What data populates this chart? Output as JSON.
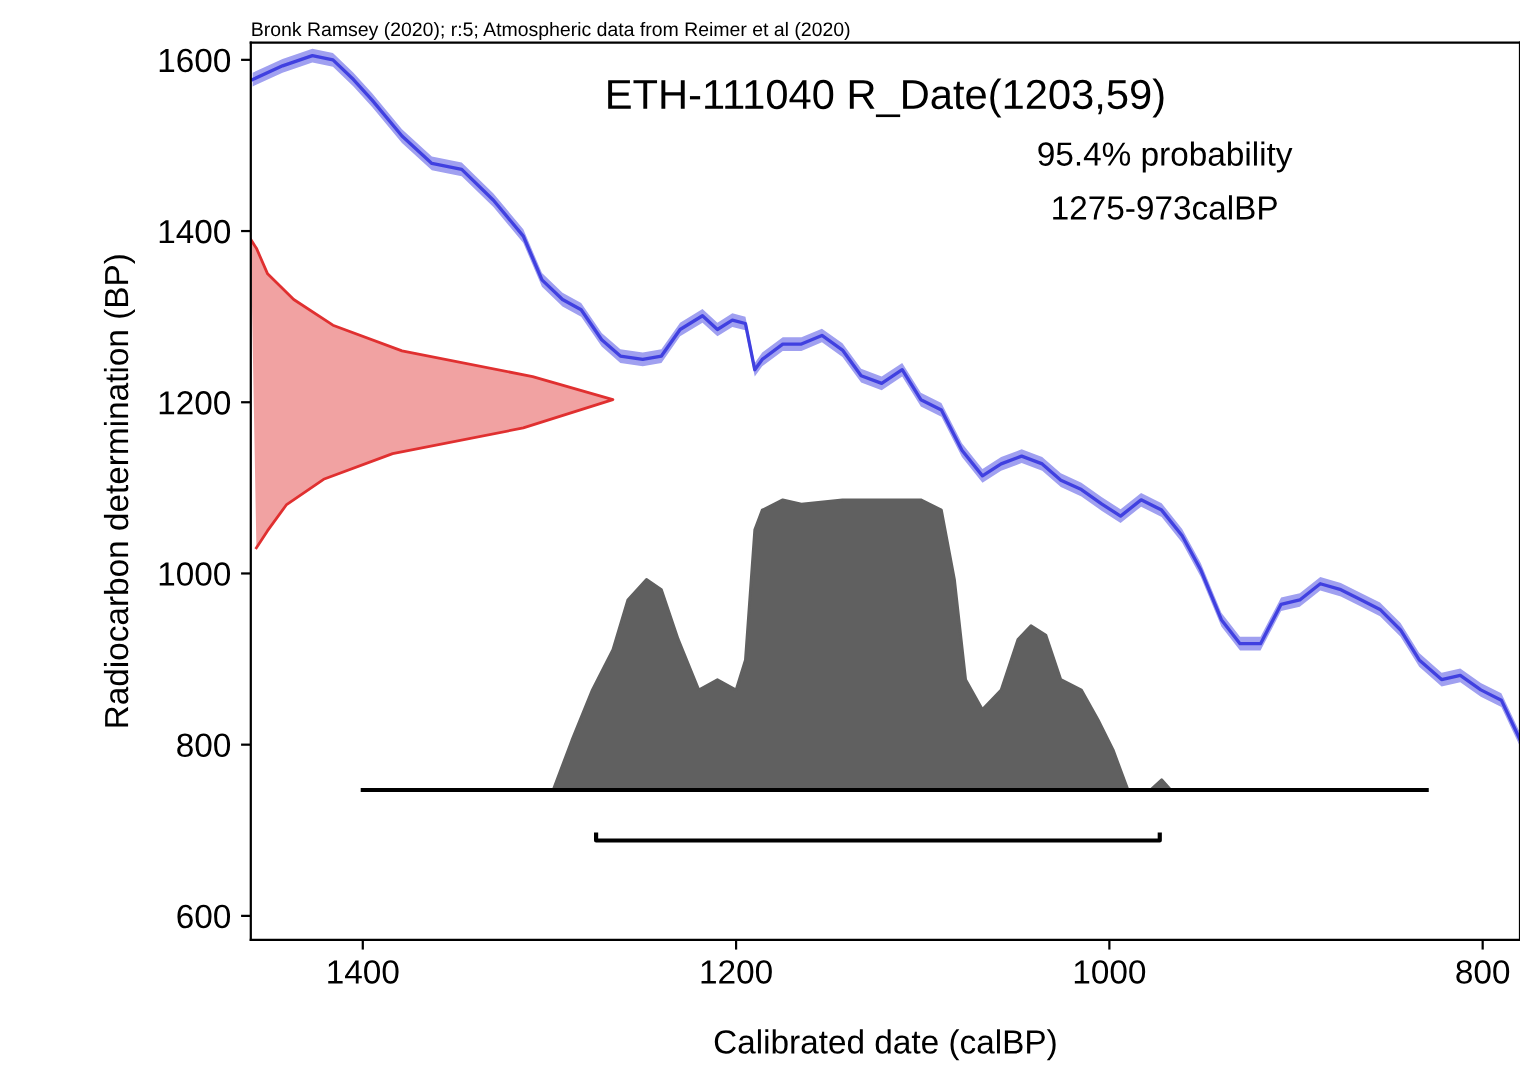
{
  "chart_data": {
    "type": "line",
    "title": "ETH-111040 R_Date(1203,59)",
    "xlabel": "Calibrated date (calBP)",
    "ylabel": "Radiocarbon determination (BP)",
    "annotations": [
      "Bronk Ramsey (2020); r:5; Atmospheric data from Reimer et al (2020)",
      "95.4% probability",
      "1275-973calBP"
    ],
    "xlim": [
      1460,
      780
    ],
    "xticks": [
      1400,
      1200,
      1000,
      800
    ],
    "ylim": [
      572,
      1620
    ],
    "yticks": [
      600,
      800,
      1000,
      1200,
      1400,
      1600
    ],
    "grid": false,
    "legend": false,
    "series": [
      {
        "color": "#4040e0",
        "x": [
          1459,
          1443,
          1427,
          1416,
          1405,
          1395,
          1379,
          1363,
          1347,
          1330,
          1314,
          1304,
          1293,
          1283,
          1272,
          1262,
          1250,
          1240,
          1230,
          1218,
          1210,
          1202,
          1195,
          1190,
          1186,
          1175,
          1165,
          1154,
          1143,
          1133,
          1122,
          1111,
          1101,
          1090,
          1079,
          1068,
          1058,
          1047,
          1036,
          1026,
          1015,
          1004,
          994,
          983,
          972,
          961,
          951,
          940,
          930,
          919,
          908,
          898,
          887,
          876,
          865,
          855,
          844,
          834,
          822,
          812,
          801,
          790,
          780
        ],
        "values": [
          1577,
          1593,
          1605,
          1600,
          1577,
          1553,
          1511,
          1479,
          1472,
          1436,
          1394,
          1343,
          1320,
          1308,
          1273,
          1254,
          1250,
          1254,
          1285,
          1301,
          1285,
          1296,
          1292,
          1238,
          1250,
          1268,
          1268,
          1278,
          1261,
          1231,
          1222,
          1238,
          1203,
          1191,
          1144,
          1114,
          1128,
          1137,
          1128,
          1109,
          1098,
          1081,
          1067,
          1086,
          1074,
          1044,
          1004,
          946,
          918,
          918,
          964,
          969,
          988,
          981,
          969,
          958,
          934,
          899,
          876,
          881,
          864,
          852,
          806
        ],
        "lower": [
          1569,
          1585,
          1597,
          1592,
          1569,
          1545,
          1503,
          1471,
          1464,
          1428,
          1386,
          1335,
          1312,
          1300,
          1265,
          1246,
          1242,
          1246,
          1277,
          1293,
          1277,
          1288,
          1284,
          1230,
          1242,
          1260,
          1260,
          1270,
          1253,
          1223,
          1214,
          1230,
          1195,
          1183,
          1136,
          1106,
          1120,
          1129,
          1120,
          1101,
          1090,
          1073,
          1059,
          1078,
          1066,
          1036,
          996,
          938,
          910,
          910,
          956,
          961,
          980,
          973,
          961,
          950,
          926,
          891,
          868,
          873,
          856,
          844,
          798
        ],
        "upper": [
          1585,
          1601,
          1613,
          1608,
          1585,
          1561,
          1519,
          1487,
          1480,
          1444,
          1402,
          1351,
          1328,
          1316,
          1281,
          1262,
          1258,
          1262,
          1293,
          1309,
          1293,
          1304,
          1300,
          1246,
          1258,
          1276,
          1276,
          1286,
          1269,
          1239,
          1230,
          1246,
          1211,
          1199,
          1152,
          1122,
          1136,
          1145,
          1136,
          1117,
          1106,
          1089,
          1075,
          1094,
          1082,
          1052,
          1012,
          954,
          926,
          926,
          972,
          977,
          996,
          989,
          977,
          966,
          942,
          907,
          884,
          889,
          872,
          860,
          814
        ]
      },
      {
        "type": "area",
        "color": "#e03030",
        "x": [
          1460,
          1457,
          1451,
          1437,
          1416,
          1379,
          1309,
          1266,
          1314,
          1384,
          1421,
          1441,
          1451,
          1457
        ],
        "values": [
          1390,
          1380,
          1350,
          1320,
          1290,
          1260,
          1230,
          1203,
          1170,
          1140,
          1110,
          1080,
          1050,
          1030
        ]
      },
      {
        "type": "area",
        "color": "#606060",
        "x": [
          1298,
          1288,
          1277,
          1266,
          1258,
          1248,
          1240,
          1231,
          1220,
          1210,
          1200,
          1195,
          1190,
          1186,
          1175,
          1165,
          1143,
          1122,
          1101,
          1090,
          1083,
          1077,
          1068,
          1058,
          1049,
          1042,
          1034,
          1026,
          1015,
          1006,
          998,
          990,
          978,
          972,
          967
        ],
        "values": [
          747,
          805,
          864,
          911,
          969,
          993,
          981,
          923,
          864,
          876,
          864,
          899,
          1051,
          1074,
          1086,
          1081,
          1086,
          1086,
          1086,
          1074,
          993,
          876,
          841,
          864,
          923,
          939,
          928,
          876,
          864,
          829,
          794,
          747,
          747,
          759,
          747
        ]
      },
      {
        "type": "line",
        "color": "#000000",
        "x": [
          1400,
          830
        ],
        "values": [
          747,
          747
        ]
      },
      {
        "type": "line",
        "color": "#000000",
        "x": [
          1275,
          1275,
          973,
          973
        ],
        "values": [
          695,
          688,
          688,
          695
        ]
      }
    ]
  }
}
